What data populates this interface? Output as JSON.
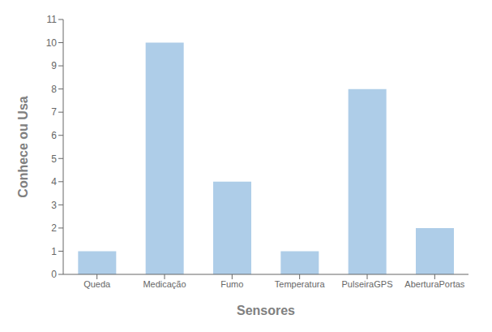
{
  "chart_data": {
    "type": "bar",
    "categories": [
      "Queda",
      "Medicação",
      "Fumo",
      "Temperatura",
      "PulseiraGPS",
      "AberturaPortas"
    ],
    "values": [
      1,
      10,
      4,
      1,
      8,
      2
    ],
    "color": "#aecde8",
    "xlabel": "Sensores",
    "ylabel": "Conhece ou Usa",
    "ylim": [
      0,
      11
    ],
    "yticks": [
      0,
      1,
      2,
      3,
      4,
      5,
      6,
      7,
      8,
      9,
      10,
      11
    ],
    "grid": false
  }
}
